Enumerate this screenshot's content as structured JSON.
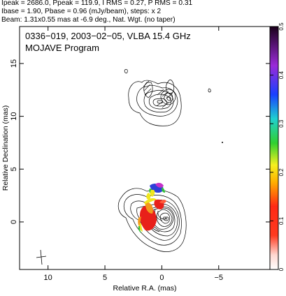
{
  "header": {
    "line1": "Ipeak = 2686.0, Ppeak = 119.9, I RMS = 0.27, P RMS = 0.31",
    "line2": "Ibase = 1.90, Pbase = 0.96 (mJy/beam), steps: x 2",
    "line3": "Beam: 1.31x0.55 mas at -6.9 deg., Nat. Wgt. (no taper)"
  },
  "plot": {
    "title_line1": "0336−019, 2003−02−05, VLBA 15.4 GHz",
    "title_line2": "MOJAVE Program",
    "xlabel": "Relative R.A. (mas)",
    "ylabel": "Relative Declination (mas)",
    "xticks": [
      {
        "value": 10,
        "label": "10"
      },
      {
        "value": 5,
        "label": "5"
      },
      {
        "value": 0,
        "label": "0"
      },
      {
        "value": -5,
        "label": "−5"
      }
    ],
    "yticks": [
      {
        "value": 0,
        "label": "0"
      },
      {
        "value": 5,
        "label": "5"
      },
      {
        "value": 10,
        "label": "10"
      },
      {
        "value": 15,
        "label": "15"
      }
    ],
    "xlim": [
      12.5,
      -9.5
    ],
    "ylim": [
      -4.5,
      18.5
    ]
  },
  "colorbar": {
    "ticks": [
      {
        "value": 0,
        "label": "0"
      },
      {
        "value": 0.1,
        "label": "0.1"
      },
      {
        "value": 0.2,
        "label": "0.2"
      },
      {
        "value": 0.3,
        "label": "0.3"
      },
      {
        "value": 0.4,
        "label": "0.4"
      },
      {
        "value": 0.5,
        "label": "0.5"
      }
    ],
    "range": [
      0,
      0.5
    ]
  },
  "colors": {
    "frame": "#000000",
    "contour": "#000000",
    "red": "#e8201a",
    "orange": "#f39a1c",
    "yellow": "#f0e61e",
    "green": "#33c23a",
    "blue": "#2d3fd8",
    "magenta": "#c432c8"
  }
}
